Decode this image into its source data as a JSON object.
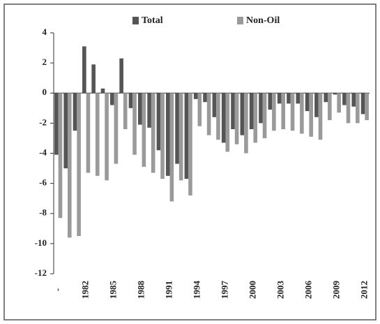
{
  "chart_data": {
    "type": "bar",
    "categories": [
      "-",
      null,
      null,
      "1982",
      null,
      null,
      "1985",
      null,
      null,
      "1988",
      null,
      null,
      "1991",
      null,
      null,
      "1994",
      null,
      null,
      "1997",
      null,
      null,
      "2000",
      null,
      null,
      "2003",
      null,
      null,
      "2006",
      null,
      null,
      "2009",
      null,
      null,
      "2012"
    ],
    "series": [
      {
        "name": "Total",
        "color": "#555555",
        "values": [
          -4.1,
          -5.0,
          -2.5,
          3.1,
          1.9,
          0.3,
          -0.8,
          2.3,
          -1.0,
          -2.1,
          -2.3,
          -3.8,
          -5.5,
          -4.7,
          -5.7,
          -0.4,
          -0.6,
          -1.6,
          -3.3,
          -2.4,
          -2.8,
          -2.4,
          -2.0,
          -1.1,
          -0.7,
          -0.7,
          -0.7,
          -1.2,
          -1.6,
          -0.6,
          -0.1,
          -0.8,
          -0.9,
          -1.4
        ]
      },
      {
        "name": "Non-Oil",
        "color": "#9a9a9a",
        "values": [
          -8.3,
          -9.6,
          -9.5,
          -5.3,
          -5.5,
          -5.8,
          -4.7,
          -2.4,
          -4.1,
          -4.9,
          -5.3,
          -5.7,
          -7.2,
          -5.8,
          -6.8,
          -2.2,
          -2.8,
          -3.1,
          -3.9,
          -3.4,
          -4.0,
          -3.3,
          -3.0,
          -2.5,
          -2.4,
          -2.5,
          -2.7,
          -2.9,
          -3.1,
          -1.8,
          -1.3,
          -2.0,
          -2.0,
          -1.8
        ]
      }
    ],
    "ylim": [
      -12,
      4
    ],
    "yticks": [
      -12,
      -10,
      -8,
      -6,
      -4,
      -2,
      0,
      2,
      4
    ]
  }
}
